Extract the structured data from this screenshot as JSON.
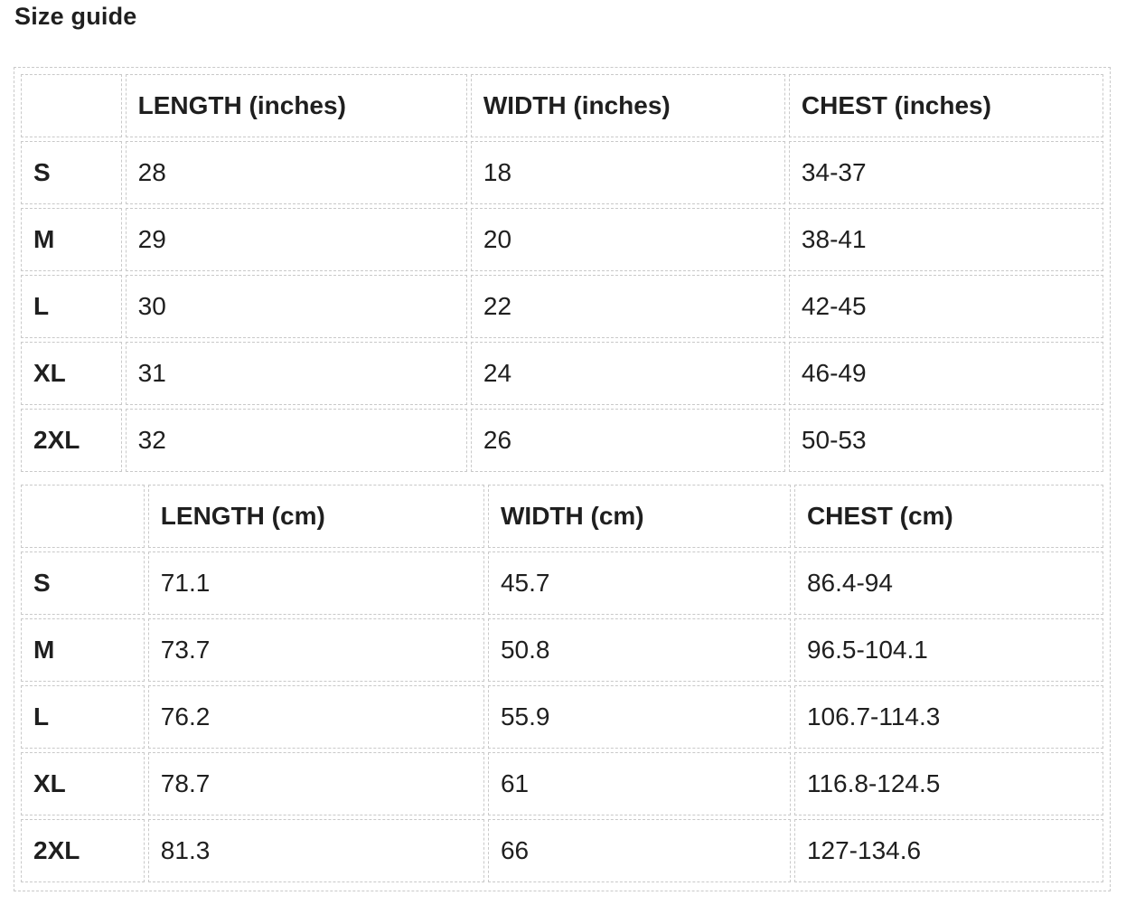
{
  "title": "Size guide",
  "inches_table": {
    "headers": [
      "",
      "LENGTH (inches)",
      "WIDTH (inches)",
      "CHEST (inches)"
    ],
    "rows": [
      {
        "size": "S",
        "length": "28",
        "width": "18",
        "chest": "34-37"
      },
      {
        "size": "M",
        "length": "29",
        "width": "20",
        "chest": "38-41"
      },
      {
        "size": "L",
        "length": "30",
        "width": "22",
        "chest": "42-45"
      },
      {
        "size": "XL",
        "length": "31",
        "width": "24",
        "chest": "46-49"
      },
      {
        "size": "2XL",
        "length": "32",
        "width": "26",
        "chest": "50-53"
      }
    ]
  },
  "cm_table": {
    "headers": [
      "",
      "LENGTH (cm)",
      "WIDTH (cm)",
      "CHEST (cm)"
    ],
    "rows": [
      {
        "size": "S",
        "length": "71.1",
        "width": "45.7",
        "chest": "86.4-94"
      },
      {
        "size": "M",
        "length": "73.7",
        "width": "50.8",
        "chest": "96.5-104.1"
      },
      {
        "size": "L",
        "length": "76.2",
        "width": "55.9",
        "chest": "106.7-114.3"
      },
      {
        "size": "XL",
        "length": "78.7",
        "width": "61",
        "chest": "116.8-124.5"
      },
      {
        "size": "2XL",
        "length": "81.3",
        "width": "66",
        "chest": "127-134.6"
      }
    ]
  },
  "colors": {
    "text": "#1f1f1f",
    "border": "#c9c9c9",
    "background": "#ffffff"
  }
}
